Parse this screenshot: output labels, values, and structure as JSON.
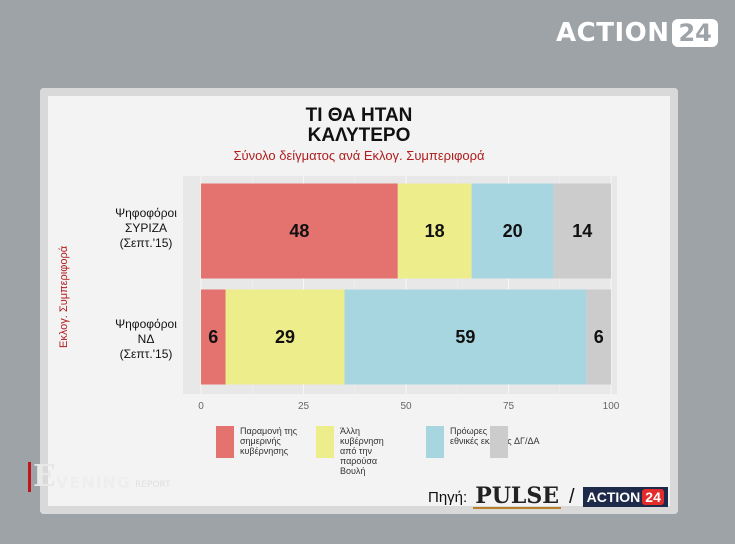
{
  "header_logo": {
    "word": "ACTION",
    "number": "24"
  },
  "chart_data": {
    "type": "bar",
    "stacked": true,
    "orientation": "horizontal",
    "title_line1": "ΤΙ ΘΑ ΗΤΑΝ",
    "title_line2": "ΚΑΛΥΤΕΡΟ",
    "subtitle": "Σύνολο δείγματος ανά Εκλογ. Συμπεριφορά",
    "ylabel": "Εκλογ. Συμπεριφορά",
    "categories": [
      [
        "Ψηφοφόροι",
        "ΣΥΡΙΖΑ",
        "(Σεπτ.'15)"
      ],
      [
        "Ψηφοφόροι",
        "ΝΔ",
        "(Σεπτ.'15)"
      ]
    ],
    "series": [
      {
        "name": "Παραμονή της σημερινής κυβέρνησης",
        "color": "#e4726f",
        "values": [
          48,
          6
        ]
      },
      {
        "name": "Άλλη κυβέρνηση από την παρούσα Βουλή",
        "color": "#eeed8c",
        "values": [
          18,
          29
        ]
      },
      {
        "name": "Πρόωρες εθνικές εκλογές",
        "color": "#a8d6e0",
        "values": [
          20,
          59
        ]
      },
      {
        "name": "ΔΓ/ΔΑ",
        "color": "#cccccc",
        "values": [
          14,
          6
        ]
      }
    ],
    "xlim": [
      0,
      100
    ],
    "xticks": [
      0,
      25,
      50,
      75,
      100
    ],
    "grid": true
  },
  "legend": [
    {
      "text": "Παραμονή της σημερινής κυβέρνησης",
      "color": "#e4726f"
    },
    {
      "text": "Άλλη κυβέρνηση από την παρούσα Βουλή",
      "color": "#eeed8c"
    },
    {
      "text": "Πρόωρες εθνικές εκλογές",
      "color": "#a8d6e0"
    },
    {
      "text": "ΔΓ/ΔΑ",
      "color": "#cccccc"
    }
  ],
  "footer": {
    "show_big": "E",
    "show_rest": "VENING",
    "show_small": "REPORT",
    "source_label": "Πηγή:",
    "source_pulse": "PULSE",
    "slash": "/",
    "source_action_word": "ACTION",
    "source_action_num": "24"
  }
}
